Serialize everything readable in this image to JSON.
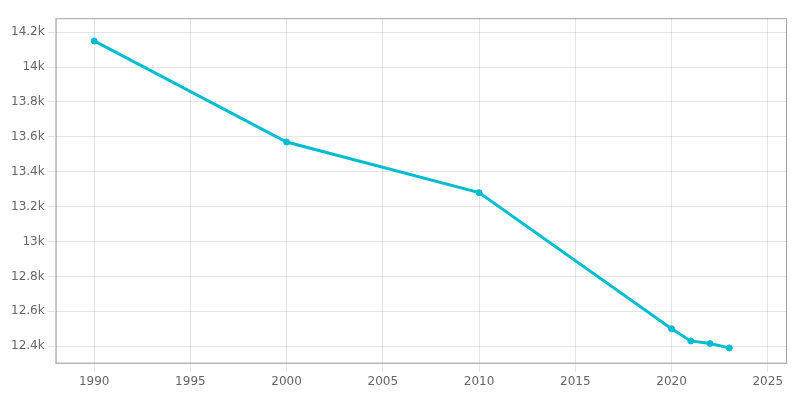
{
  "chart_data": {
    "type": "line",
    "x": [
      1990,
      2000,
      2010,
      2020,
      2021,
      2022,
      2023
    ],
    "values": [
      14150,
      13570,
      13280,
      12500,
      12430,
      12415,
      12390
    ],
    "color": "#00BCD0",
    "marker": "circle",
    "line_style": "solid",
    "xlim": [
      1988,
      2026
    ],
    "xticks": [
      1990,
      1995,
      2000,
      2005,
      2010,
      2015,
      2020,
      2025
    ],
    "ylim": [
      12300,
      14280
    ],
    "yticks": [
      {
        "value": 12400,
        "label": "12.4k"
      },
      {
        "value": 12600,
        "label": "12.6k"
      },
      {
        "value": 12800,
        "label": "12.8k"
      },
      {
        "value": 13000,
        "label": "13k"
      },
      {
        "value": 13200,
        "label": "13.2k"
      },
      {
        "value": 13400,
        "label": "13.4k"
      },
      {
        "value": 13600,
        "label": "13.6k"
      },
      {
        "value": 13800,
        "label": "13.8k"
      },
      {
        "value": 14000,
        "label": "14k"
      },
      {
        "value": 14200,
        "label": "14.2k"
      }
    ],
    "grid": true
  }
}
